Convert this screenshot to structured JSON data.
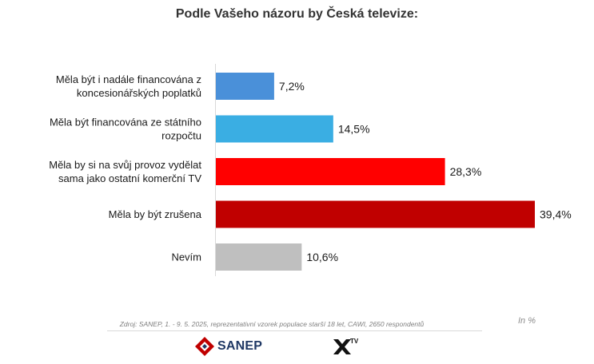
{
  "chart_data": {
    "type": "bar",
    "orientation": "horizontal",
    "title": "Podle Vašeho názoru by Česká televize:",
    "categories": [
      [
        "Měla být i nadále financována z",
        "koncesionářských poplatků"
      ],
      [
        "Měla být financována ze státního",
        "rozpočtu"
      ],
      [
        "Měla by si na svůj provoz vydělat",
        "sama jako ostatní komerční TV"
      ],
      [
        "Měla by být zrušena"
      ],
      [
        "Nevím"
      ]
    ],
    "values": [
      7.2,
      14.5,
      28.3,
      39.4,
      10.6
    ],
    "value_labels": [
      "7,2%",
      "14,5%",
      "28,3%",
      "39,4%",
      "10,6%"
    ],
    "colors": [
      "#4a90d9",
      "#3aaee3",
      "#ff0000",
      "#c00000",
      "#bfbfbf"
    ],
    "xlim": [
      0,
      40
    ],
    "grid": false,
    "legend": "none"
  },
  "footer": {
    "source": "Zdroj: SANEP, 1. - 9. 5. 2025, reprezentativní vzorek populace starší 18 let, CAWI, 2650 respondentů",
    "unit_note": "In %"
  },
  "logos": {
    "sanep": {
      "text": "SANEP",
      "icon": "sanep-logo-icon",
      "color": "#1f3864",
      "accent": "#c00000"
    },
    "xtv": {
      "text": "TV",
      "icon": "x-tv-logo-icon"
    }
  }
}
